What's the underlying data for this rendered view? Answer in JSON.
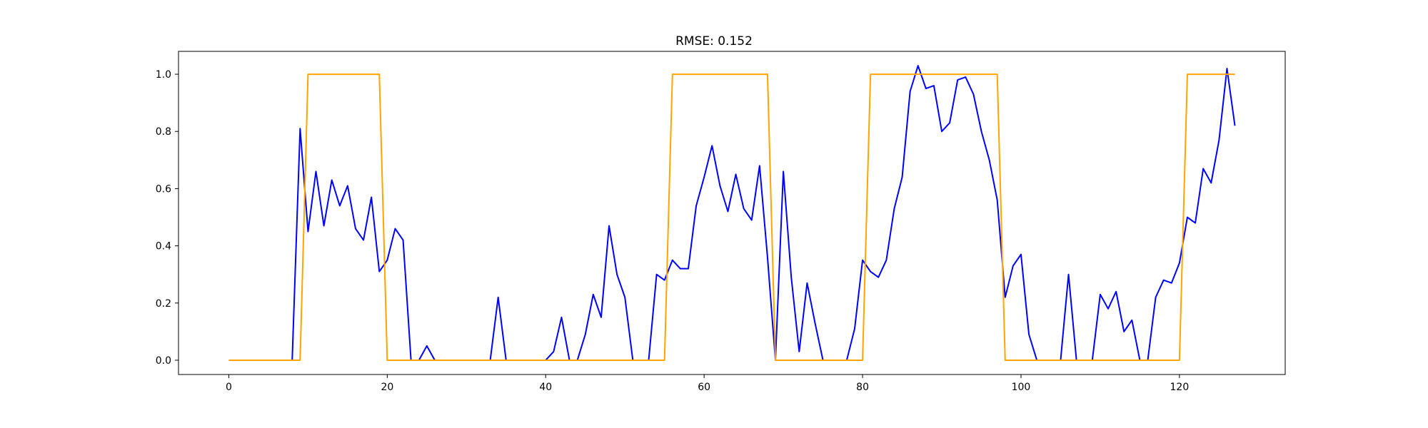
{
  "chart_data": {
    "type": "line",
    "title": "RMSE: 0.152",
    "xlabel": "",
    "ylabel": "",
    "xlim": [
      -6.35,
      133.35
    ],
    "ylim": [
      -0.05,
      1.08
    ],
    "x_ticks": [
      0,
      20,
      40,
      60,
      80,
      100,
      120
    ],
    "x_tick_labels": [
      "0",
      "20",
      "40",
      "60",
      "80",
      "100",
      "120"
    ],
    "y_ticks": [
      0.0,
      0.2,
      0.4,
      0.6,
      0.8,
      1.0
    ],
    "y_tick_labels": [
      "0.0",
      "0.2",
      "0.4",
      "0.6",
      "0.8",
      "1.0"
    ],
    "grid": false,
    "series": [
      {
        "color": "#0000ff",
        "values": [
          0,
          0,
          0,
          0,
          0,
          0,
          0,
          0,
          0,
          0.81,
          0.45,
          0.66,
          0.47,
          0.63,
          0.54,
          0.61,
          0.46,
          0.42,
          0.57,
          0.31,
          0.35,
          0.46,
          0.42,
          0,
          0,
          0.05,
          0,
          0,
          0,
          0,
          0,
          0,
          0,
          0,
          0.22,
          0,
          0,
          0,
          0,
          0,
          0,
          0.03,
          0.15,
          0,
          0,
          0.09,
          0.23,
          0.15,
          0.47,
          0.3,
          0.22,
          0,
          0,
          0,
          0.3,
          0.28,
          0.35,
          0.32,
          0.32,
          0.54,
          0.64,
          0.75,
          0.61,
          0.52,
          0.65,
          0.53,
          0.49,
          0.68,
          0.36,
          0,
          0.66,
          0.29,
          0.03,
          0.27,
          0.13,
          0,
          0,
          0,
          0,
          0.11,
          0.35,
          0.31,
          0.29,
          0.35,
          0.53,
          0.64,
          0.94,
          1.03,
          0.95,
          0.96,
          0.8,
          0.83,
          0.98,
          0.99,
          0.93,
          0.8,
          0.7,
          0.56,
          0.22,
          0.33,
          0.37,
          0.09,
          0,
          0,
          0,
          0,
          0.3,
          0,
          0,
          0,
          0.23,
          0.18,
          0.24,
          0.1,
          0.14,
          0,
          0,
          0.22,
          0.28,
          0.27,
          0.34,
          0.5,
          0.48,
          0.67,
          0.62,
          0.77,
          1.02,
          0.82
        ]
      },
      {
        "color": "#ffa500",
        "values": [
          0,
          0,
          0,
          0,
          0,
          0,
          0,
          0,
          0,
          0,
          1,
          1,
          1,
          1,
          1,
          1,
          1,
          1,
          1,
          1,
          0,
          0,
          0,
          0,
          0,
          0,
          0,
          0,
          0,
          0,
          0,
          0,
          0,
          0,
          0,
          0,
          0,
          0,
          0,
          0,
          0,
          0,
          0,
          0,
          0,
          0,
          0,
          0,
          0,
          0,
          0,
          0,
          0,
          0,
          0,
          0,
          1,
          1,
          1,
          1,
          1,
          1,
          1,
          1,
          1,
          1,
          1,
          1,
          1,
          0,
          0,
          0,
          0,
          0,
          0,
          0,
          0,
          0,
          0,
          0,
          0,
          1,
          1,
          1,
          1,
          1,
          1,
          1,
          1,
          1,
          1,
          1,
          1,
          1,
          1,
          1,
          1,
          1,
          0,
          0,
          0,
          0,
          0,
          0,
          0,
          0,
          0,
          0,
          0,
          0,
          0,
          0,
          0,
          0,
          0,
          0,
          0,
          0,
          0,
          0,
          0,
          1,
          1,
          1,
          1,
          1,
          1,
          1
        ]
      }
    ]
  }
}
